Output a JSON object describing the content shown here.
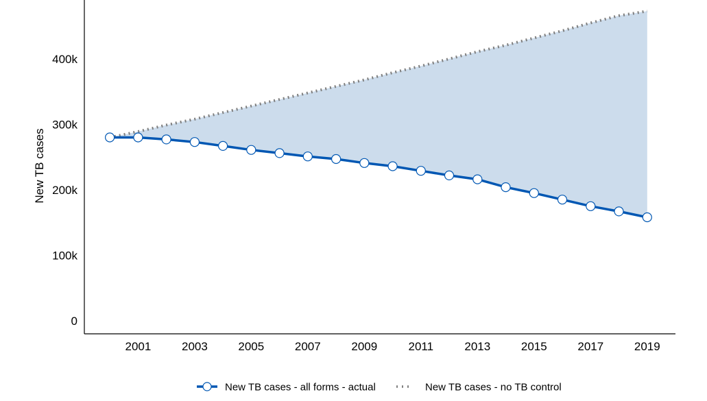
{
  "chart_data": {
    "type": "line",
    "title": "",
    "xlabel": "",
    "ylabel": "New TB cases",
    "x": [
      2000,
      2001,
      2002,
      2003,
      2004,
      2005,
      2006,
      2007,
      2008,
      2009,
      2010,
      2011,
      2012,
      2013,
      2014,
      2015,
      2016,
      2017,
      2018,
      2019
    ],
    "x_tick_values": [
      2001,
      2003,
      2005,
      2007,
      2009,
      2011,
      2013,
      2015,
      2017,
      2019
    ],
    "x_tick_labels": [
      "2001",
      "2003",
      "2005",
      "2007",
      "2009",
      "2011",
      "2013",
      "2015",
      "2017",
      "2019"
    ],
    "y_tick_values": [
      0,
      100000,
      200000,
      300000,
      400000
    ],
    "y_tick_labels": [
      "0",
      "100k",
      "200k",
      "300k",
      "400k"
    ],
    "xlim": [
      1999.1,
      2020
    ],
    "ylim": [
      -20000,
      490000
    ],
    "grid": false,
    "legend_position": "bottom",
    "shaded_area_between_series": true,
    "colors": {
      "actual": "#0057b3",
      "no_control": "#7f7f7f",
      "fill": "#ccdcec",
      "marker_fill": "#ffffff"
    },
    "series": [
      {
        "name": "New TB cases - all forms - actual",
        "style": "solid-with-circle-markers",
        "values": [
          280000,
          280000,
          277000,
          273000,
          267000,
          261000,
          256000,
          251000,
          247000,
          241000,
          236000,
          229000,
          222000,
          216000,
          204000,
          195000,
          185000,
          175000,
          167000,
          158000
        ]
      },
      {
        "name": "New TB cases - no TB control",
        "style": "dotted",
        "values": [
          280000,
          289000,
          299000,
          308000,
          318000,
          328000,
          338000,
          348000,
          358000,
          368000,
          379000,
          389000,
          400000,
          411000,
          421000,
          432000,
          443000,
          455000,
          466000,
          473000
        ]
      }
    ]
  }
}
